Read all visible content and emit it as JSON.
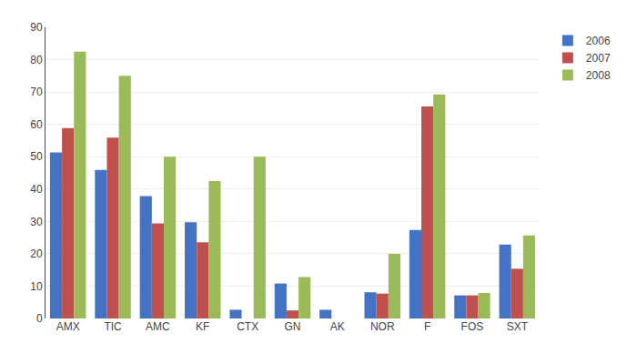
{
  "chart_data": {
    "type": "bar",
    "categories": [
      "AMX",
      "TIC",
      "AMC",
      "KF",
      "CTX",
      "GN",
      "AK",
      "NOR",
      "F",
      "FOS",
      "SXT"
    ],
    "series": [
      {
        "name": "2006",
        "color": "#4472C4",
        "values": [
          51.35,
          45.94,
          37.83,
          29.72,
          2.7,
          10.81,
          2.7,
          8.1,
          27.36,
          7.14,
          22.85
        ]
      },
      {
        "name": "2007",
        "color": "#C0504D",
        "values": [
          58.82,
          55.88,
          29.41,
          23.52,
          0,
          2.49,
          0,
          7.69,
          65.51,
          7.14,
          15.38
        ]
      },
      {
        "name": "2008",
        "color": "#9BBB59",
        "values": [
          82.5,
          75,
          50,
          42.5,
          50,
          12.82,
          0,
          20,
          69.23,
          7.89,
          25.64
        ]
      }
    ],
    "ylim": [
      0,
      90
    ],
    "yticks": [
      0,
      10,
      20,
      30,
      40,
      50,
      60,
      70,
      80,
      90
    ],
    "grid": true,
    "legend": "upper right"
  }
}
